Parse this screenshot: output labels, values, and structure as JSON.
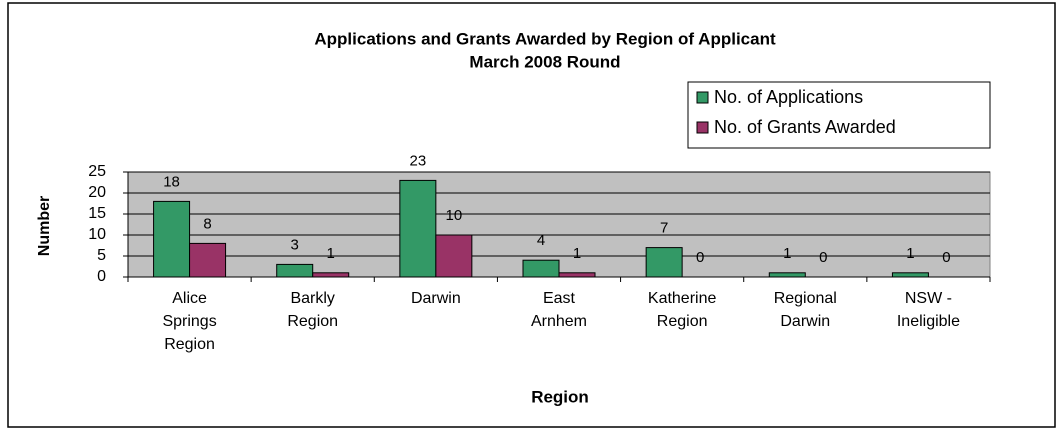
{
  "chart_data": {
    "type": "bar",
    "title": "Applications and Grants Awarded by Region of Applicant",
    "subtitle": "March 2008 Round",
    "x_label": "Region",
    "y_label": "Number",
    "categories": [
      "Alice Springs Region",
      "Barkly Region",
      "Darwin",
      "East Arnhem",
      "Katherine Region",
      "Regional Darwin",
      "NSW - Ineligible"
    ],
    "series": [
      {
        "name": "No. of Applications",
        "color": "#339966",
        "values": [
          18,
          3,
          23,
          4,
          7,
          1,
          1
        ]
      },
      {
        "name": "No. of Grants Awarded",
        "color": "#993366",
        "values": [
          8,
          1,
          10,
          1,
          0,
          0,
          0
        ]
      }
    ],
    "ylim": [
      0,
      25
    ],
    "yticks": [
      0,
      5,
      10,
      15,
      20,
      25
    ],
    "grid": true,
    "legend": "top-right",
    "plot_background": "#c0c0c0"
  }
}
